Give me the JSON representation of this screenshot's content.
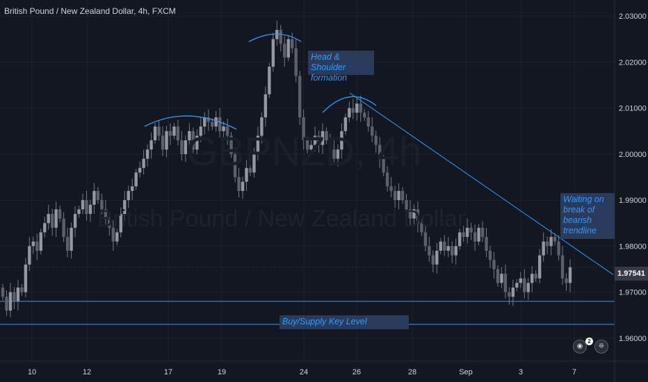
{
  "header": {
    "title": "British Pound / New Zealand Dollar, 4h, FXCM"
  },
  "watermark": {
    "ticker": "GBPNZD, 4h",
    "name": "British Pound / New Zealand Dollar"
  },
  "annotations": {
    "head_shoulder": "Head & Shoulder formation",
    "waiting": "Waiting on break of bearish trendline",
    "key_level": "Buy/Supply Key Level"
  },
  "current_price": "1.97541",
  "badges": {
    "count": "2"
  },
  "colors": {
    "background": "#131722",
    "candle": "#787b86",
    "drawing": "#2f9bff",
    "grid": "#1e222d",
    "axis_text": "#d1d4dc",
    "annotation_bg": "#2a3a5a"
  },
  "chart_data": {
    "type": "candlestick",
    "title": "British Pound / New Zealand Dollar, 4h, FXCM",
    "y_ticks": [
      "2.03000",
      "2.02000",
      "2.01000",
      "2.00000",
      "1.99000",
      "1.98000",
      "1.97000",
      "1.96000"
    ],
    "x_ticks": [
      "10",
      "12",
      "17",
      "19",
      "24",
      "26",
      "28",
      "Sep",
      "3",
      "7"
    ],
    "ylim": [
      1.955,
      2.0335
    ],
    "support_levels": [
      1.968,
      1.963
    ],
    "trendline": [
      [
        2.0133,
        503
      ],
      [
        1.9738,
        882
      ]
    ],
    "closes": [
      1.969,
      1.966,
      1.97,
      1.968,
      1.971,
      1.97,
      1.976,
      1.98,
      1.981,
      1.979,
      1.983,
      1.985,
      1.987,
      1.984,
      1.988,
      1.986,
      1.982,
      1.979,
      1.984,
      1.987,
      1.988,
      1.99,
      1.987,
      1.989,
      1.992,
      1.99,
      1.988,
      1.986,
      1.984,
      1.981,
      1.983,
      1.987,
      1.99,
      1.992,
      1.993,
      1.996,
      1.997,
      1.999,
      2.001,
      2.003,
      2.006,
      2.004,
      2.001,
      2.005,
      2.004,
      2.006,
      2.003,
      2.0,
      2.003,
      2.005,
      2.001,
      2.004,
      2.006,
      2.008,
      2.007,
      2.006,
      2.008,
      2.005,
      2.006,
      2.004,
      2.0,
      1.995,
      1.992,
      1.994,
      1.997,
      1.996,
      2.0,
      2.004,
      2.008,
      2.013,
      2.019,
      2.025,
      2.027,
      2.024,
      2.021,
      2.025,
      2.023,
      2.017,
      2.008,
      2.003,
      2.001,
      2.002,
      2.004,
      2.002,
      2.005,
      2.003,
      2.001,
      1.999,
      2.001,
      2.005,
      2.008,
      2.01,
      2.009,
      2.011,
      2.009,
      2.008,
      2.006,
      2.004,
      2.002,
      1.999,
      1.996,
      1.993,
      1.992,
      1.99,
      1.992,
      1.99,
      1.988,
      1.986,
      1.988,
      1.985,
      1.983,
      1.98,
      1.978,
      1.976,
      1.979,
      1.981,
      1.979,
      1.98,
      1.978,
      1.98,
      1.983,
      1.982,
      1.984,
      1.983,
      1.981,
      1.984,
      1.982,
      1.979,
      1.977,
      1.975,
      1.972,
      1.974,
      1.97,
      1.969,
      1.971,
      1.972,
      1.973,
      1.97,
      1.972,
      1.974,
      1.973,
      1.978,
      1.981,
      1.98,
      1.982,
      1.981,
      1.978,
      1.973,
      1.972,
      1.9754
    ]
  }
}
